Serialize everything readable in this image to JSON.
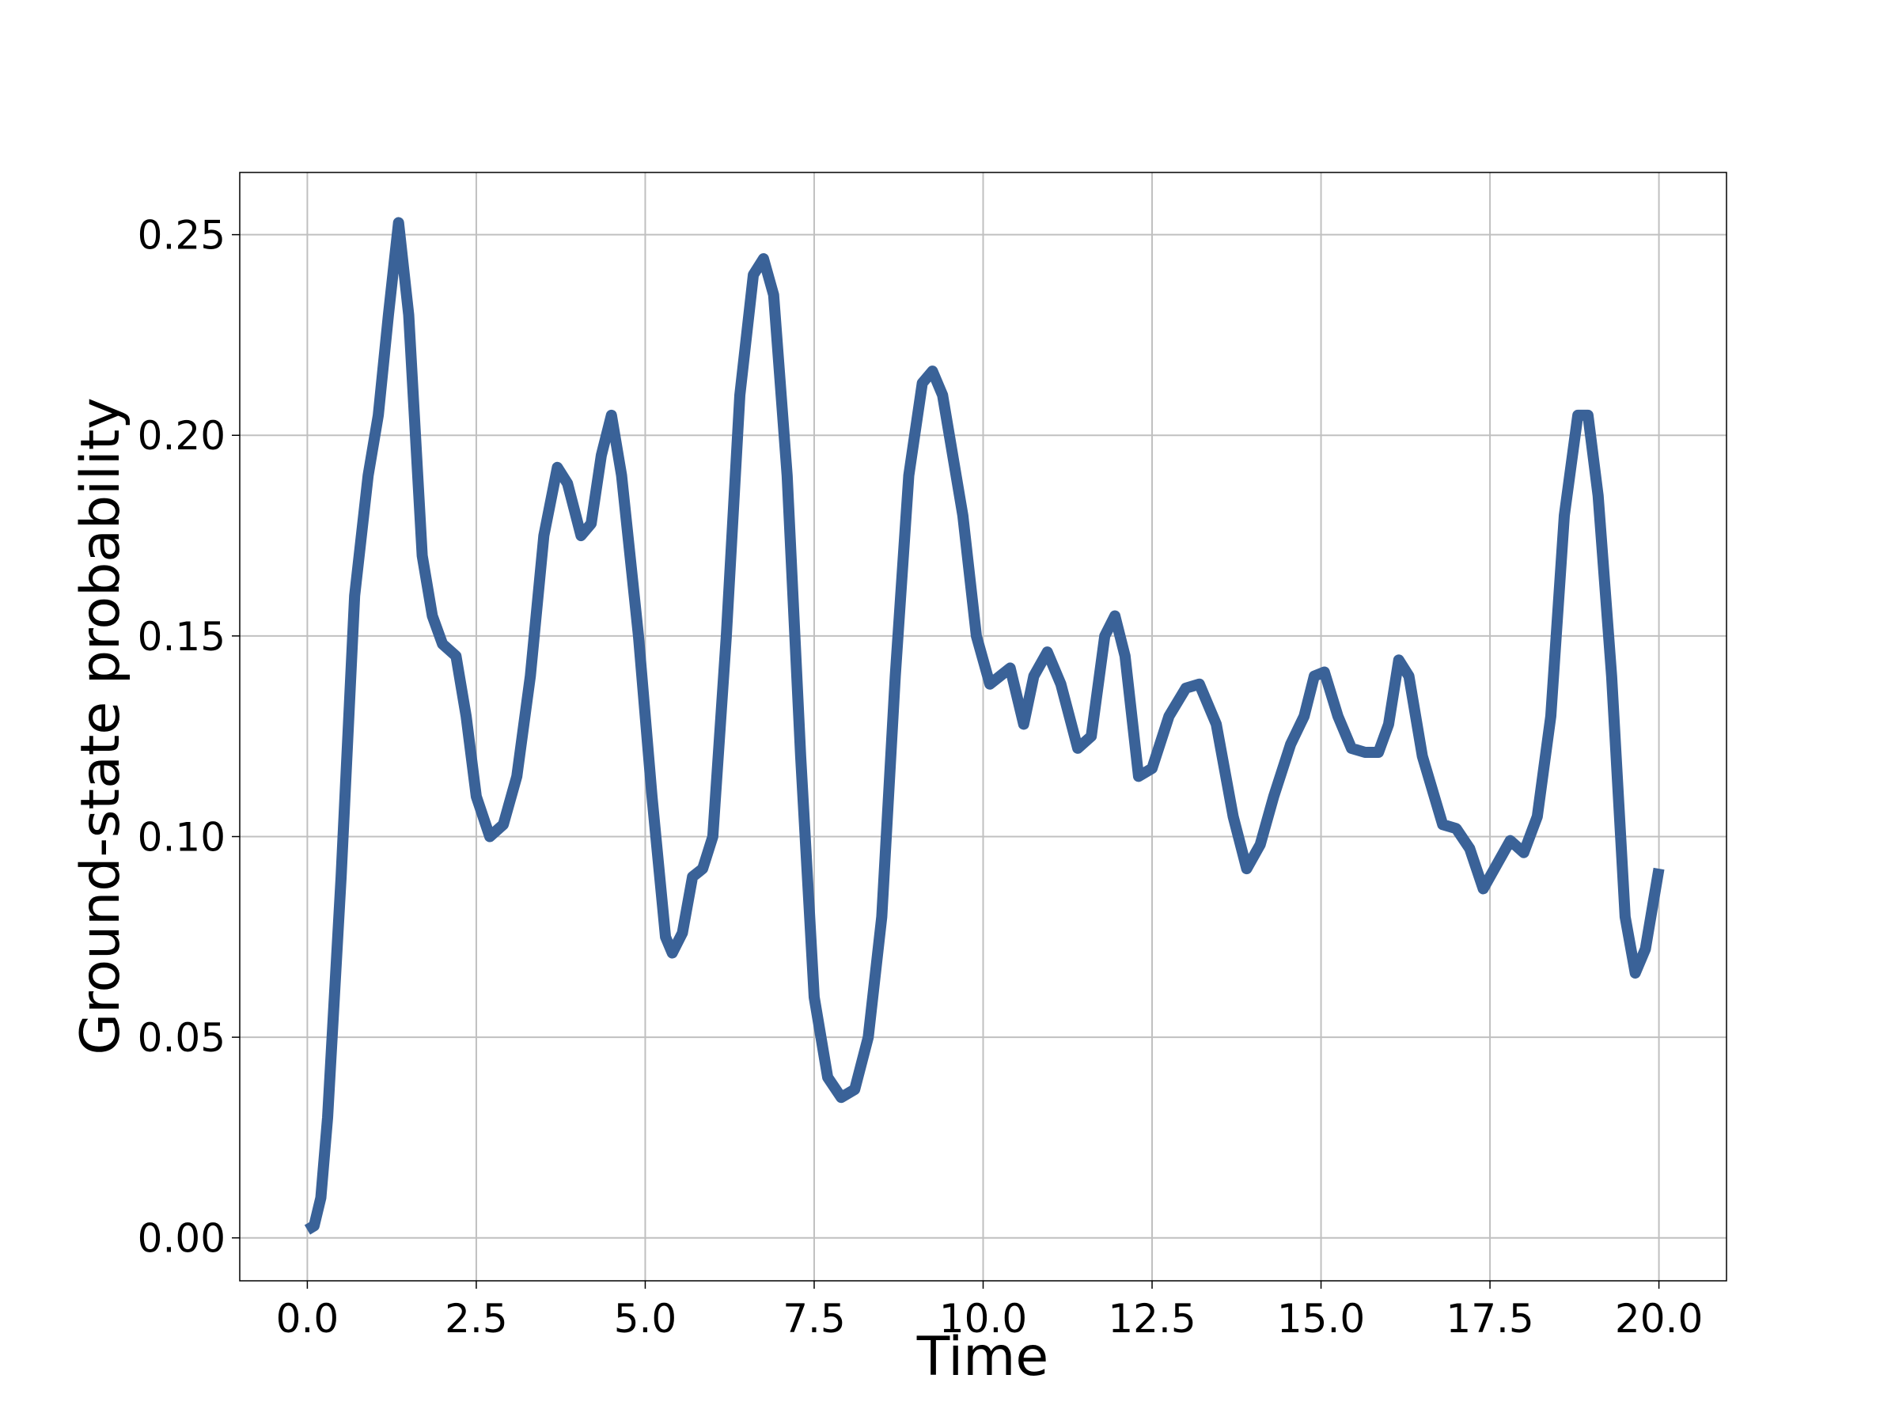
{
  "chart_data": {
    "type": "line",
    "xlabel": "Time",
    "ylabel": "Ground-state probability",
    "x": [
      0,
      0.1,
      0.2,
      0.3,
      0.5,
      0.7,
      0.9,
      1.05,
      1.2,
      1.35,
      1.5,
      1.7,
      1.85,
      2.0,
      2.2,
      2.35,
      2.5,
      2.7,
      2.9,
      3.1,
      3.3,
      3.5,
      3.7,
      3.85,
      4.05,
      4.2,
      4.35,
      4.5,
      4.65,
      4.9,
      5.1,
      5.3,
      5.4,
      5.55,
      5.7,
      5.85,
      6.0,
      6.2,
      6.4,
      6.6,
      6.75,
      6.9,
      7.1,
      7.3,
      7.5,
      7.7,
      7.9,
      8.1,
      8.3,
      8.5,
      8.7,
      8.9,
      9.1,
      9.25,
      9.4,
      9.7,
      9.9,
      10.1,
      10.25,
      10.4,
      10.6,
      10.75,
      10.95,
      11.15,
      11.4,
      11.6,
      11.8,
      11.95,
      12.1,
      12.3,
      12.5,
      12.75,
      13.0,
      13.2,
      13.45,
      13.7,
      13.9,
      14.1,
      14.3,
      14.55,
      14.75,
      14.9,
      15.05,
      15.25,
      15.45,
      15.65,
      15.85,
      16.0,
      16.15,
      16.3,
      16.5,
      16.8,
      17.0,
      17.2,
      17.4,
      17.6,
      17.8,
      18.0,
      18.2,
      18.4,
      18.6,
      18.8,
      18.95,
      19.1,
      19.3,
      19.5,
      19.65,
      19.8,
      20.0
    ],
    "series": [
      {
        "color": "#3a6298",
        "values": [
          0.002,
          0.003,
          0.01,
          0.03,
          0.09,
          0.16,
          0.19,
          0.205,
          0.23,
          0.253,
          0.23,
          0.17,
          0.155,
          0.148,
          0.145,
          0.13,
          0.11,
          0.1,
          0.103,
          0.115,
          0.14,
          0.175,
          0.192,
          0.188,
          0.175,
          0.178,
          0.195,
          0.205,
          0.19,
          0.15,
          0.11,
          0.075,
          0.071,
          0.076,
          0.09,
          0.092,
          0.1,
          0.15,
          0.21,
          0.24,
          0.244,
          0.235,
          0.19,
          0.12,
          0.06,
          0.04,
          0.035,
          0.037,
          0.05,
          0.08,
          0.14,
          0.19,
          0.213,
          0.216,
          0.21,
          0.18,
          0.15,
          0.138,
          0.14,
          0.142,
          0.128,
          0.14,
          0.146,
          0.138,
          0.122,
          0.125,
          0.15,
          0.155,
          0.145,
          0.115,
          0.117,
          0.13,
          0.137,
          0.138,
          0.128,
          0.105,
          0.092,
          0.098,
          0.11,
          0.123,
          0.13,
          0.14,
          0.141,
          0.13,
          0.122,
          0.121,
          0.121,
          0.128,
          0.144,
          0.14,
          0.12,
          0.103,
          0.102,
          0.097,
          0.087,
          0.093,
          0.099,
          0.096,
          0.105,
          0.13,
          0.18,
          0.205,
          0.205,
          0.185,
          0.14,
          0.08,
          0.066,
          0.072,
          0.092
        ]
      }
    ],
    "xlim": [
      -1,
      21
    ],
    "xticks": [
      {
        "value": 0,
        "label": "0.0"
      },
      {
        "value": 2.5,
        "label": "2.5"
      },
      {
        "value": 5,
        "label": "5.0"
      },
      {
        "value": 7.5,
        "label": "7.5"
      },
      {
        "value": 10,
        "label": "10.0"
      },
      {
        "value": 12.5,
        "label": "12.5"
      },
      {
        "value": 15,
        "label": "15.0"
      },
      {
        "value": 17.5,
        "label": "17.5"
      },
      {
        "value": 20,
        "label": "20.0"
      }
    ],
    "ylim": [
      -0.0107,
      0.2655
    ],
    "yticks": [
      {
        "value": 0,
        "label": "0.00"
      },
      {
        "value": 0.05,
        "label": "0.05"
      },
      {
        "value": 0.1,
        "label": "0.10"
      },
      {
        "value": 0.15,
        "label": "0.15"
      },
      {
        "value": 0.2,
        "label": "0.20"
      },
      {
        "value": 0.25,
        "label": "0.25"
      }
    ],
    "grid": true
  }
}
